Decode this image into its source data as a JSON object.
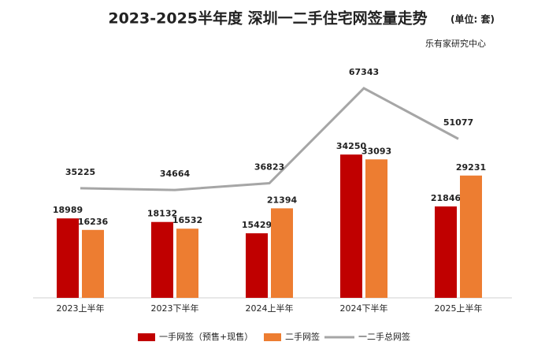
{
  "chart_data": {
    "type": "bar-line",
    "title": "2023-2025半年度 深圳一二手住宅网签量走势",
    "unit": "(单位: 套)",
    "source": "乐有家研究中心",
    "categories": [
      "2023上半年",
      "2023下半年",
      "2024上半年",
      "2024下半年",
      "2025上半年"
    ],
    "series": [
      {
        "name": "一手网签（预售+现售）",
        "color": "#c00000",
        "kind": "bar",
        "values": [
          18989,
          18132,
          15429,
          34250,
          21846
        ]
      },
      {
        "name": "二手网签",
        "color": "#ed7d31",
        "kind": "bar",
        "values": [
          16236,
          16532,
          21394,
          33093,
          29231
        ]
      },
      {
        "name": "一二手总网签",
        "color": "#a6a6a6",
        "kind": "line",
        "axis": "y2",
        "values": [
          35225,
          34664,
          36823,
          67343,
          51077
        ]
      }
    ]
  }
}
